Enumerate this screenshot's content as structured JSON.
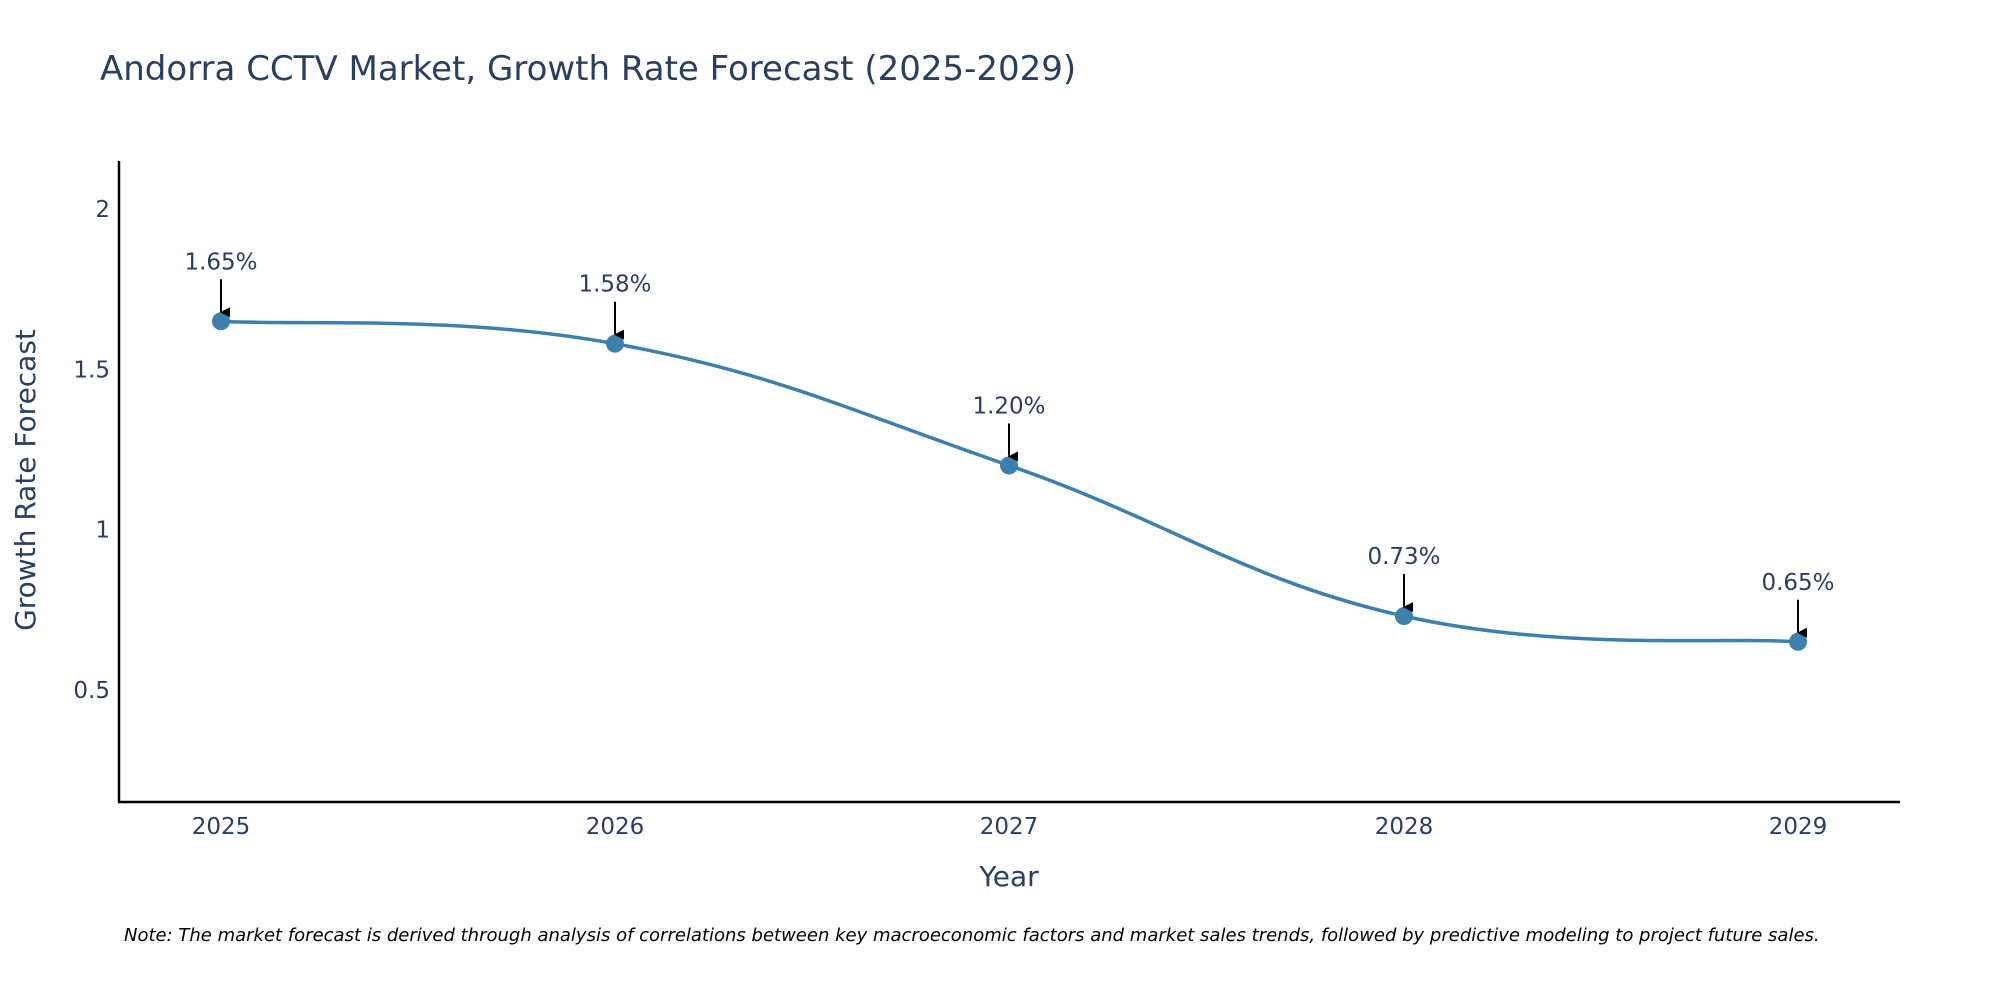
{
  "chart_data": {
    "type": "line",
    "title": "Andorra CCTV Market, Growth Rate Forecast (2025-2029)",
    "xlabel": "Year",
    "ylabel": "Growth Rate Forecast",
    "categories": [
      "2025",
      "2026",
      "2027",
      "2028",
      "2029"
    ],
    "series": [
      {
        "name": "Growth Rate Forecast",
        "values": [
          1.65,
          1.58,
          1.2,
          0.73,
          0.65
        ],
        "labels": [
          "1.65%",
          "1.58%",
          "1.20%",
          "0.73%",
          "0.65%"
        ]
      }
    ],
    "ylim": [
      0.15,
      2.15
    ],
    "yticks": [
      0.5,
      1,
      1.5,
      2
    ],
    "ytick_labels": [
      "0.5",
      "1",
      "1.5",
      "2"
    ],
    "grid": false,
    "line_color": "#3d7fad",
    "marker_color": "#3d7fad",
    "annotation_arrow_color": "#000000",
    "note": "Note: The market forecast is derived through analysis of correlations between key macroeconomic factors and market sales trends, followed by predictive modeling to project future sales."
  }
}
